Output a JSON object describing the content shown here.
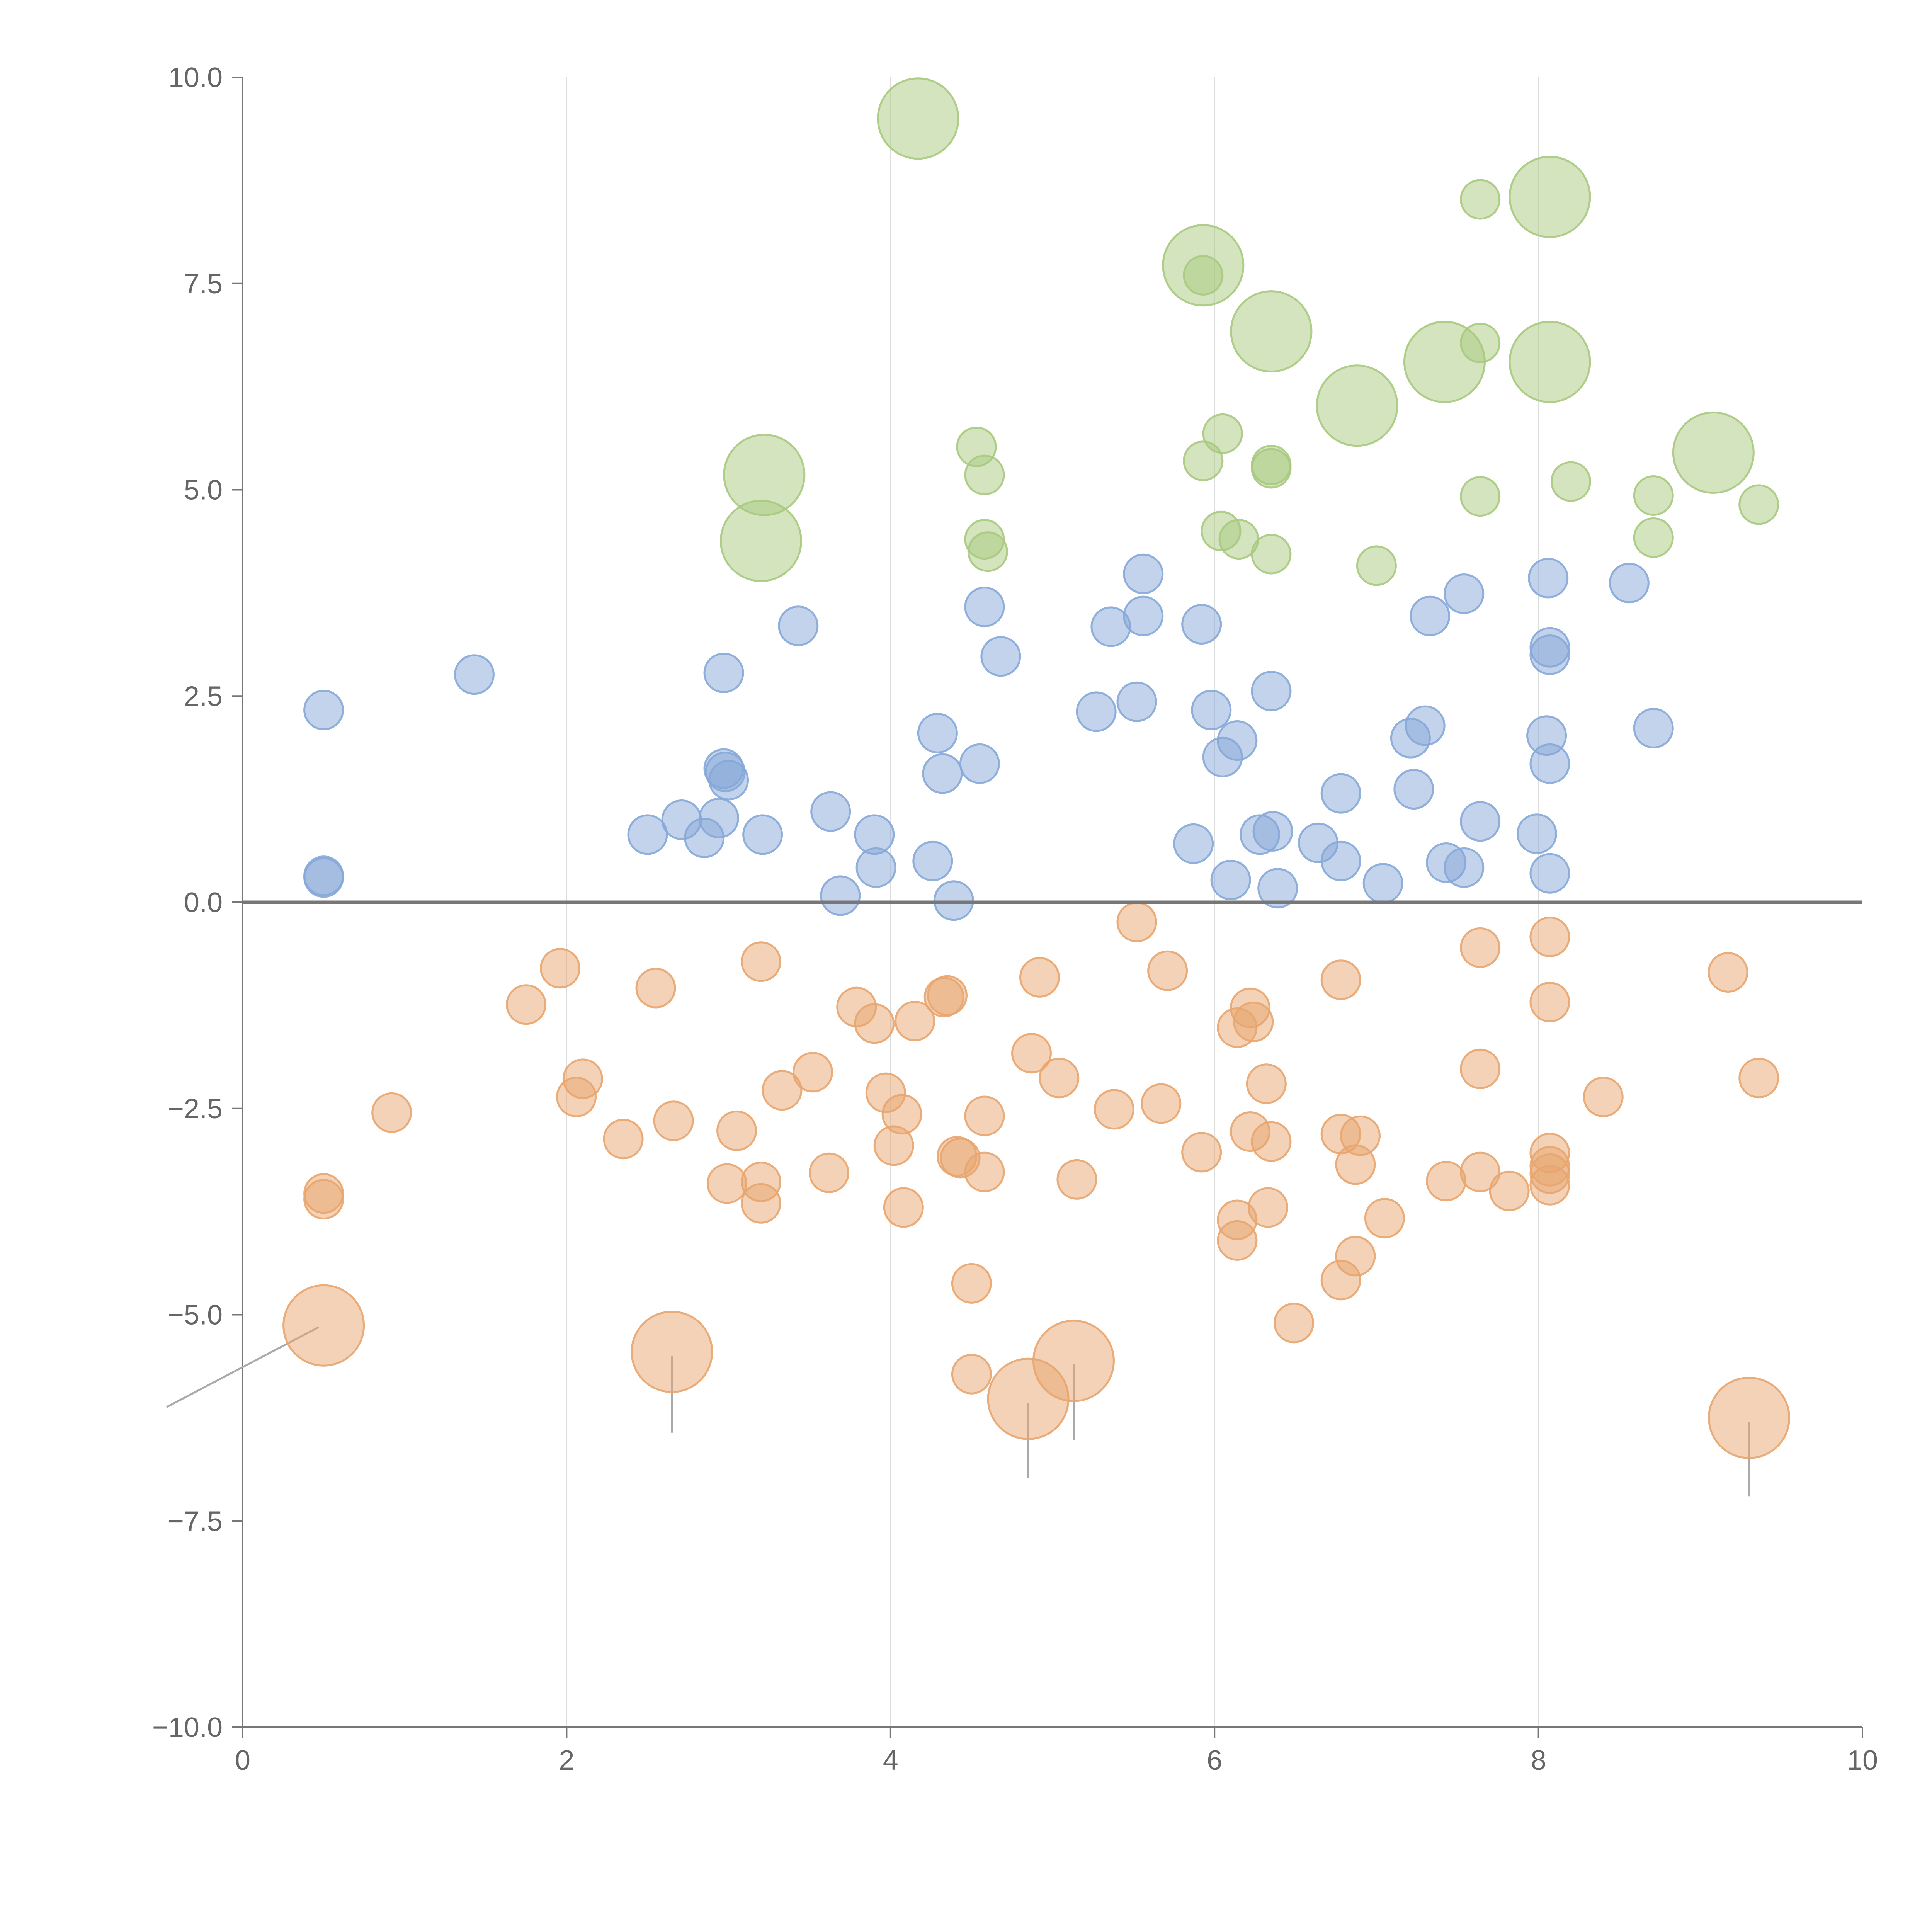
{
  "chart_data": {
    "type": "scatter",
    "title": "",
    "xlabel": "",
    "ylabel": "",
    "xlim": [
      0,
      10
    ],
    "ylim": [
      -10,
      10
    ],
    "x_ticks": [
      0,
      2,
      4,
      6,
      8,
      10
    ],
    "x_tick_labels": [
      "0",
      "2",
      "4",
      "6",
      "8",
      "10"
    ],
    "y_ticks": [
      10,
      7.5,
      5,
      2.5,
      0,
      -2.5,
      -5,
      -7.5,
      -10
    ],
    "y_tick_labels": [
      "10.0",
      "7.5",
      "5.0",
      "2.5",
      "0.0",
      "−2.5",
      "−5.0",
      "−7.5",
      "−10.0"
    ],
    "vertical_grid_at_x": [
      2,
      4,
      6,
      8
    ],
    "reference_line_y": 0,
    "size_note": "small = 1, large = 3 (relative bubble size)",
    "series": [
      {
        "name": "green",
        "color": "#a8c97f",
        "points": [
          {
            "x": 4.17,
            "y": 9.5,
            "s": 3
          },
          {
            "x": 8.07,
            "y": 8.55,
            "s": 3
          },
          {
            "x": 7.64,
            "y": 8.52,
            "s": 1
          },
          {
            "x": 5.93,
            "y": 7.72,
            "s": 3
          },
          {
            "x": 5.93,
            "y": 7.6,
            "s": 1
          },
          {
            "x": 6.35,
            "y": 6.92,
            "s": 3
          },
          {
            "x": 7.42,
            "y": 6.55,
            "s": 3
          },
          {
            "x": 8.07,
            "y": 6.55,
            "s": 3
          },
          {
            "x": 7.64,
            "y": 6.78,
            "s": 1
          },
          {
            "x": 6.88,
            "y": 6.02,
            "s": 3
          },
          {
            "x": 4.53,
            "y": 5.52,
            "s": 1
          },
          {
            "x": 6.05,
            "y": 5.68,
            "s": 1
          },
          {
            "x": 3.22,
            "y": 5.18,
            "s": 3
          },
          {
            "x": 4.58,
            "y": 5.18,
            "s": 1
          },
          {
            "x": 5.93,
            "y": 5.35,
            "s": 1
          },
          {
            "x": 6.35,
            "y": 5.3,
            "s": 1
          },
          {
            "x": 6.35,
            "y": 5.26,
            "s": 1
          },
          {
            "x": 9.08,
            "y": 5.45,
            "s": 3
          },
          {
            "x": 8.2,
            "y": 5.1,
            "s": 1
          },
          {
            "x": 7.64,
            "y": 4.92,
            "s": 1
          },
          {
            "x": 8.71,
            "y": 4.93,
            "s": 1
          },
          {
            "x": 9.36,
            "y": 4.82,
            "s": 1
          },
          {
            "x": 3.2,
            "y": 4.38,
            "s": 3
          },
          {
            "x": 4.58,
            "y": 4.4,
            "s": 1
          },
          {
            "x": 4.6,
            "y": 4.25,
            "s": 1
          },
          {
            "x": 6.04,
            "y": 4.5,
            "s": 1
          },
          {
            "x": 6.15,
            "y": 4.4,
            "s": 1
          },
          {
            "x": 6.35,
            "y": 4.22,
            "s": 1
          },
          {
            "x": 7.0,
            "y": 4.08,
            "s": 1
          },
          {
            "x": 8.71,
            "y": 4.42,
            "s": 1
          }
        ]
      },
      {
        "name": "blue",
        "color": "#86a8d8",
        "points": [
          {
            "x": 0.5,
            "y": 2.33,
            "s": 1
          },
          {
            "x": 1.43,
            "y": 2.76,
            "s": 1
          },
          {
            "x": 0.5,
            "y": 0.32,
            "s": 1
          },
          {
            "x": 0.5,
            "y": 0.3,
            "s": 1
          },
          {
            "x": 2.97,
            "y": 2.78,
            "s": 1
          },
          {
            "x": 3.43,
            "y": 3.35,
            "s": 1
          },
          {
            "x": 2.97,
            "y": 1.62,
            "s": 1
          },
          {
            "x": 3.0,
            "y": 1.48,
            "s": 1
          },
          {
            "x": 2.98,
            "y": 1.58,
            "s": 1
          },
          {
            "x": 2.5,
            "y": 0.82,
            "s": 1
          },
          {
            "x": 2.71,
            "y": 1.0,
            "s": 1
          },
          {
            "x": 2.85,
            "y": 0.78,
            "s": 1
          },
          {
            "x": 2.94,
            "y": 1.02,
            "s": 1
          },
          {
            "x": 3.21,
            "y": 0.82,
            "s": 1
          },
          {
            "x": 3.63,
            "y": 1.1,
            "s": 1
          },
          {
            "x": 3.69,
            "y": 0.08,
            "s": 1
          },
          {
            "x": 3.9,
            "y": 0.82,
            "s": 1
          },
          {
            "x": 3.91,
            "y": 0.42,
            "s": 1
          },
          {
            "x": 4.26,
            "y": 0.5,
            "s": 1
          },
          {
            "x": 4.39,
            "y": 0.02,
            "s": 1
          },
          {
            "x": 4.29,
            "y": 2.05,
            "s": 1
          },
          {
            "x": 4.32,
            "y": 1.56,
            "s": 1
          },
          {
            "x": 4.55,
            "y": 1.68,
            "s": 1
          },
          {
            "x": 4.58,
            "y": 3.58,
            "s": 1
          },
          {
            "x": 4.68,
            "y": 2.98,
            "s": 1
          },
          {
            "x": 5.27,
            "y": 2.31,
            "s": 1
          },
          {
            "x": 5.36,
            "y": 3.34,
            "s": 1
          },
          {
            "x": 5.52,
            "y": 2.43,
            "s": 1
          },
          {
            "x": 5.56,
            "y": 3.98,
            "s": 1
          },
          {
            "x": 5.56,
            "y": 3.47,
            "s": 1
          },
          {
            "x": 5.92,
            "y": 3.37,
            "s": 1
          },
          {
            "x": 5.87,
            "y": 0.71,
            "s": 1
          },
          {
            "x": 5.98,
            "y": 2.33,
            "s": 1
          },
          {
            "x": 6.05,
            "y": 1.76,
            "s": 1
          },
          {
            "x": 6.14,
            "y": 1.96,
            "s": 1
          },
          {
            "x": 6.1,
            "y": 0.27,
            "s": 1
          },
          {
            "x": 6.28,
            "y": 0.82,
            "s": 1
          },
          {
            "x": 6.36,
            "y": 0.86,
            "s": 1
          },
          {
            "x": 6.35,
            "y": 2.56,
            "s": 1
          },
          {
            "x": 6.39,
            "y": 0.17,
            "s": 1
          },
          {
            "x": 6.64,
            "y": 0.72,
            "s": 1
          },
          {
            "x": 6.78,
            "y": 1.32,
            "s": 1
          },
          {
            "x": 6.78,
            "y": 0.5,
            "s": 1
          },
          {
            "x": 7.04,
            "y": 0.23,
            "s": 1
          },
          {
            "x": 7.21,
            "y": 1.99,
            "s": 1
          },
          {
            "x": 7.3,
            "y": 2.14,
            "s": 1
          },
          {
            "x": 7.23,
            "y": 1.37,
            "s": 1
          },
          {
            "x": 7.33,
            "y": 3.47,
            "s": 1
          },
          {
            "x": 7.43,
            "y": 0.48,
            "s": 1
          },
          {
            "x": 7.54,
            "y": 3.74,
            "s": 1
          },
          {
            "x": 7.54,
            "y": 0.42,
            "s": 1
          },
          {
            "x": 7.64,
            "y": 0.98,
            "s": 1
          },
          {
            "x": 7.99,
            "y": 0.83,
            "s": 1
          },
          {
            "x": 8.06,
            "y": 3.93,
            "s": 1
          },
          {
            "x": 8.07,
            "y": 3.09,
            "s": 1
          },
          {
            "x": 8.07,
            "y": 3.0,
            "s": 1
          },
          {
            "x": 8.05,
            "y": 2.02,
            "s": 1
          },
          {
            "x": 8.07,
            "y": 1.68,
            "s": 1
          },
          {
            "x": 8.07,
            "y": 0.35,
            "s": 1
          },
          {
            "x": 8.56,
            "y": 3.87,
            "s": 1
          },
          {
            "x": 8.71,
            "y": 2.11,
            "s": 1
          }
        ]
      },
      {
        "name": "orange",
        "color": "#e8a56f",
        "points": [
          {
            "x": 0.5,
            "y": -3.53,
            "s": 1
          },
          {
            "x": 0.5,
            "y": -3.6,
            "s": 1
          },
          {
            "x": 0.92,
            "y": -2.55,
            "s": 1
          },
          {
            "x": 0.5,
            "y": -5.13,
            "s": 3
          },
          {
            "x": 1.75,
            "y": -1.24,
            "s": 1
          },
          {
            "x": 1.96,
            "y": -0.8,
            "s": 1
          },
          {
            "x": 2.06,
            "y": -2.36,
            "s": 1
          },
          {
            "x": 2.1,
            "y": -2.14,
            "s": 1
          },
          {
            "x": 2.35,
            "y": -2.87,
            "s": 1
          },
          {
            "x": 2.55,
            "y": -1.04,
            "s": 1
          },
          {
            "x": 2.66,
            "y": -2.65,
            "s": 1
          },
          {
            "x": 2.65,
            "y": -5.45,
            "s": 3
          },
          {
            "x": 2.99,
            "y": -3.41,
            "s": 1
          },
          {
            "x": 3.05,
            "y": -2.77,
            "s": 1
          },
          {
            "x": 3.2,
            "y": -0.72,
            "s": 1
          },
          {
            "x": 3.2,
            "y": -3.39,
            "s": 1
          },
          {
            "x": 3.2,
            "y": -3.65,
            "s": 1
          },
          {
            "x": 3.33,
            "y": -2.28,
            "s": 1
          },
          {
            "x": 3.52,
            "y": -2.06,
            "s": 1
          },
          {
            "x": 3.62,
            "y": -3.28,
            "s": 1
          },
          {
            "x": 3.79,
            "y": -1.27,
            "s": 1
          },
          {
            "x": 3.9,
            "y": -1.47,
            "s": 1
          },
          {
            "x": 3.97,
            "y": -2.31,
            "s": 1
          },
          {
            "x": 4.02,
            "y": -2.95,
            "s": 1
          },
          {
            "x": 4.07,
            "y": -2.57,
            "s": 1
          },
          {
            "x": 4.08,
            "y": -3.7,
            "s": 1
          },
          {
            "x": 4.15,
            "y": -1.44,
            "s": 1
          },
          {
            "x": 4.33,
            "y": -1.15,
            "s": 1
          },
          {
            "x": 4.35,
            "y": -1.13,
            "s": 1
          },
          {
            "x": 4.41,
            "y": -3.08,
            "s": 1
          },
          {
            "x": 4.43,
            "y": -3.1,
            "s": 1
          },
          {
            "x": 4.5,
            "y": -4.62,
            "s": 1
          },
          {
            "x": 4.5,
            "y": -5.72,
            "s": 1
          },
          {
            "x": 4.58,
            "y": -2.59,
            "s": 1
          },
          {
            "x": 4.58,
            "y": -3.27,
            "s": 1
          },
          {
            "x": 4.85,
            "y": -6.02,
            "s": 3
          },
          {
            "x": 4.87,
            "y": -1.83,
            "s": 1
          },
          {
            "x": 4.92,
            "y": -0.91,
            "s": 1
          },
          {
            "x": 5.04,
            "y": -2.13,
            "s": 1
          },
          {
            "x": 5.13,
            "y": -5.56,
            "s": 3
          },
          {
            "x": 5.15,
            "y": -3.36,
            "s": 1
          },
          {
            "x": 5.38,
            "y": -2.51,
            "s": 1
          },
          {
            "x": 5.52,
            "y": -0.24,
            "s": 1
          },
          {
            "x": 5.67,
            "y": -2.44,
            "s": 1
          },
          {
            "x": 5.71,
            "y": -0.83,
            "s": 1
          },
          {
            "x": 5.92,
            "y": -3.03,
            "s": 1
          },
          {
            "x": 6.14,
            "y": -1.52,
            "s": 1
          },
          {
            "x": 6.14,
            "y": -3.85,
            "s": 1
          },
          {
            "x": 6.14,
            "y": -4.1,
            "s": 1
          },
          {
            "x": 6.22,
            "y": -1.28,
            "s": 1
          },
          {
            "x": 6.24,
            "y": -1.45,
            "s": 1
          },
          {
            "x": 6.22,
            "y": -2.78,
            "s": 1
          },
          {
            "x": 6.32,
            "y": -2.2,
            "s": 1
          },
          {
            "x": 6.35,
            "y": -2.9,
            "s": 1
          },
          {
            "x": 6.33,
            "y": -3.7,
            "s": 1
          },
          {
            "x": 6.49,
            "y": -5.1,
            "s": 1
          },
          {
            "x": 6.78,
            "y": -0.94,
            "s": 1
          },
          {
            "x": 6.78,
            "y": -2.81,
            "s": 1
          },
          {
            "x": 6.9,
            "y": -2.83,
            "s": 1
          },
          {
            "x": 6.87,
            "y": -3.18,
            "s": 1
          },
          {
            "x": 6.87,
            "y": -4.29,
            "s": 1
          },
          {
            "x": 6.78,
            "y": -4.58,
            "s": 1
          },
          {
            "x": 7.05,
            "y": -3.83,
            "s": 1
          },
          {
            "x": 7.43,
            "y": -3.38,
            "s": 1
          },
          {
            "x": 7.64,
            "y": -0.55,
            "s": 1
          },
          {
            "x": 7.64,
            "y": -2.02,
            "s": 1
          },
          {
            "x": 7.64,
            "y": -3.27,
            "s": 1
          },
          {
            "x": 7.82,
            "y": -3.5,
            "s": 1
          },
          {
            "x": 8.07,
            "y": -0.42,
            "s": 1
          },
          {
            "x": 8.07,
            "y": -1.21,
            "s": 1
          },
          {
            "x": 8.07,
            "y": -3.04,
            "s": 1
          },
          {
            "x": 8.07,
            "y": -3.2,
            "s": 1
          },
          {
            "x": 8.07,
            "y": -3.29,
            "s": 1
          },
          {
            "x": 8.07,
            "y": -3.43,
            "s": 1
          },
          {
            "x": 8.4,
            "y": -2.36,
            "s": 1
          },
          {
            "x": 9.3,
            "y": -6.25,
            "s": 3
          },
          {
            "x": 9.17,
            "y": -0.85,
            "s": 1
          },
          {
            "x": 9.36,
            "y": -2.13,
            "s": 1
          }
        ]
      }
    ],
    "leader_lines": [
      {
        "x1": 0.47,
        "y1": -5.15,
        "x2": -0.47,
        "y2": -6.12
      },
      {
        "x1": 2.65,
        "y1": -5.5,
        "x2": 2.65,
        "y2": -6.43
      },
      {
        "x1": 4.85,
        "y1": -6.07,
        "x2": 4.85,
        "y2": -6.98
      },
      {
        "x1": 5.13,
        "y1": -5.6,
        "x2": 5.13,
        "y2": -6.52
      },
      {
        "x1": 9.3,
        "y1": -6.3,
        "x2": 9.3,
        "y2": -7.2
      }
    ]
  }
}
